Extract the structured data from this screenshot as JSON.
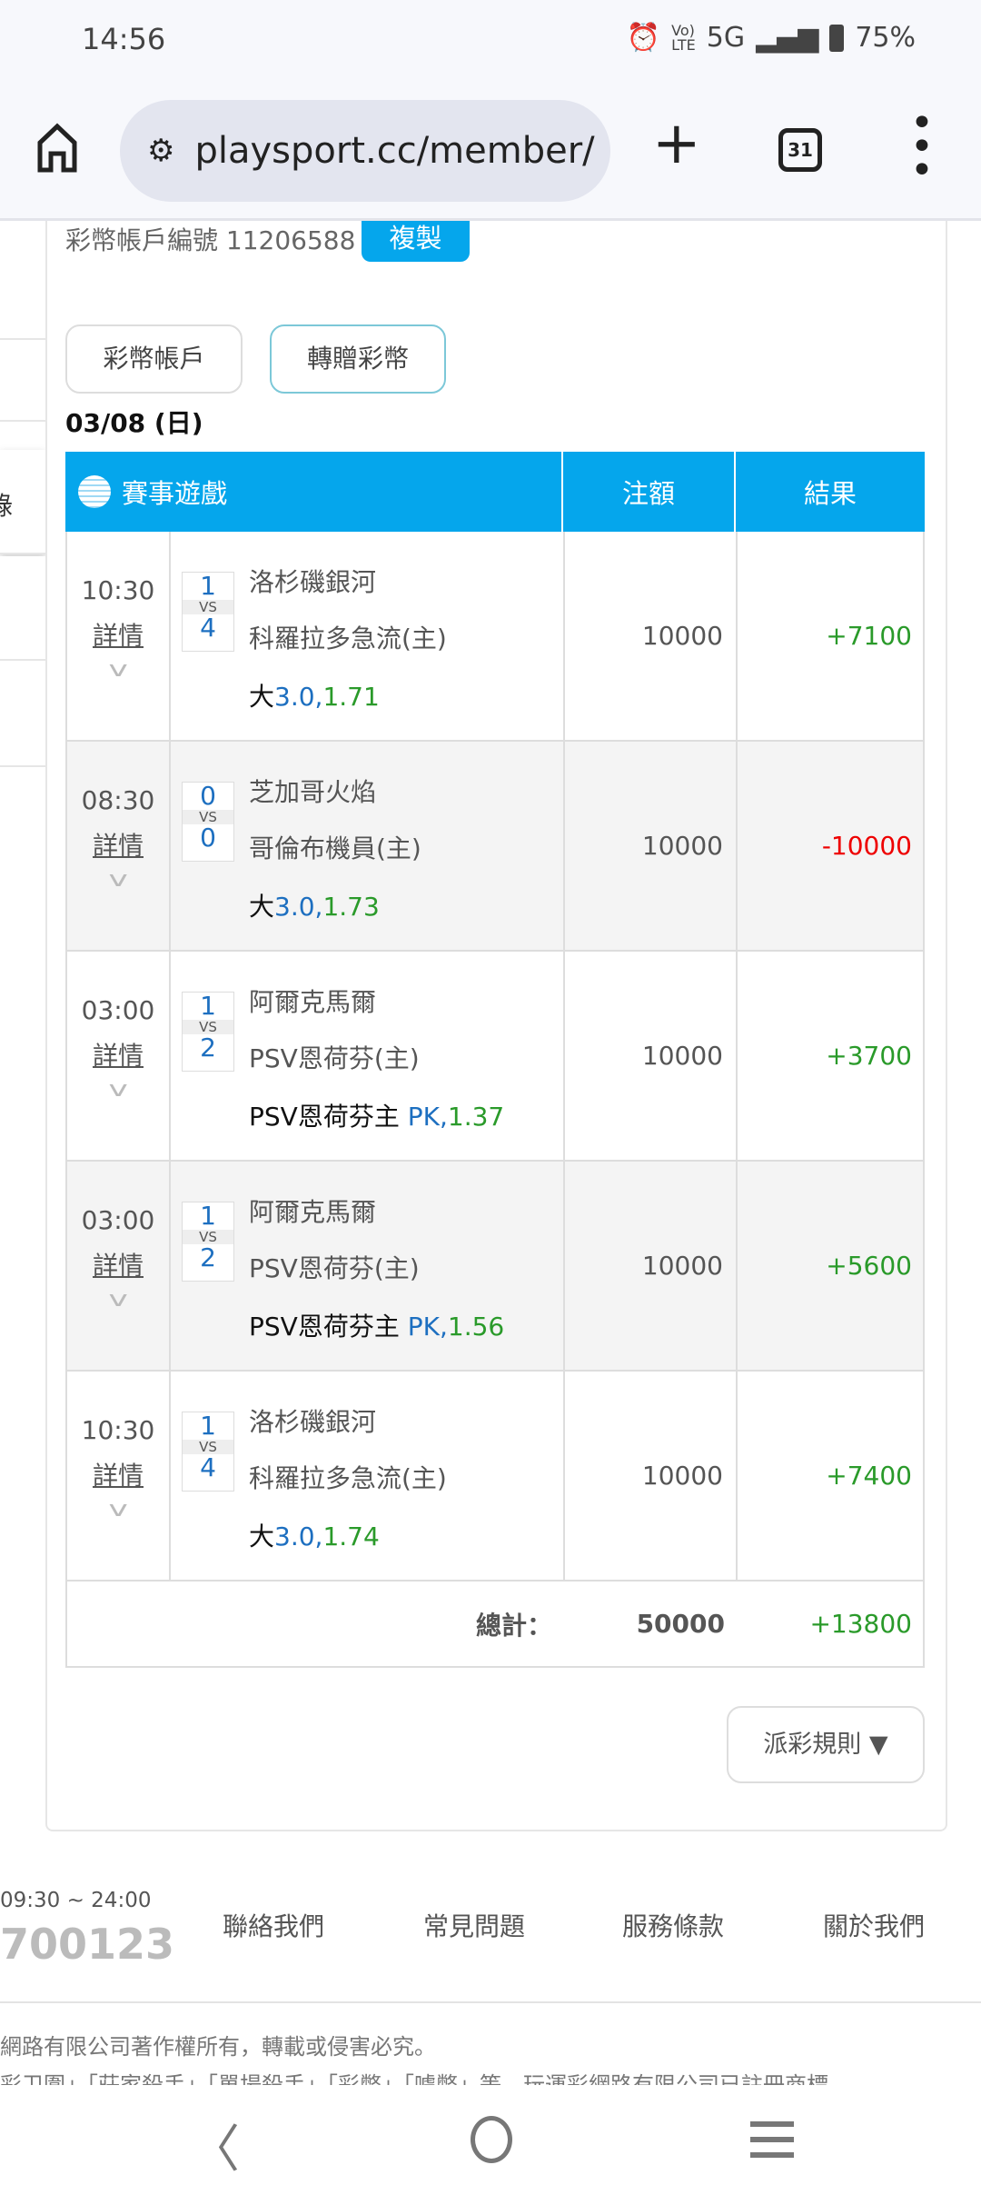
{
  "status_bar": {
    "time": "14:56",
    "icons": [
      "alarm-icon",
      "volte-icon",
      "signal-icon",
      "battery-icon"
    ],
    "network": "5G",
    "battery": "75%"
  },
  "browser": {
    "url": "playsport.cc/member/",
    "tab_count": "31"
  },
  "sidebar": {
    "partial_label": "錄"
  },
  "account": {
    "label": "彩幣帳戶編號 11206588",
    "copy_label": "複製"
  },
  "tabs": [
    {
      "label": "彩幣帳戶"
    },
    {
      "label": "轉贈彩幣"
    }
  ],
  "date": "03/08 (日)",
  "table": {
    "headers": {
      "game": "賽事遊戲",
      "stake": "注額",
      "result": "結果"
    },
    "detail_label": "詳情",
    "vs": "VS",
    "rows": [
      {
        "time": "10:30",
        "score_away": "1",
        "score_home": "4",
        "away": "洛杉磯銀河",
        "home": "科羅拉多急流(主)",
        "pick_prefix": "大",
        "line": "3.0,",
        "odds": "1.71",
        "stake": "10000",
        "result": "+7100",
        "result_type": "win"
      },
      {
        "time": "08:30",
        "score_away": "0",
        "score_home": "0",
        "away": "芝加哥火焰",
        "home": "哥倫布機員(主)",
        "pick_prefix": "大",
        "line": "3.0,",
        "odds": "1.73",
        "stake": "10000",
        "result": "-10000",
        "result_type": "loss"
      },
      {
        "time": "03:00",
        "score_away": "1",
        "score_home": "2",
        "away": "阿爾克馬爾",
        "home": "PSV恩荷芬(主)",
        "pick_prefix": "PSV恩荷芬主 ",
        "line": "PK,",
        "odds": "1.37",
        "stake": "10000",
        "result": "+3700",
        "result_type": "win"
      },
      {
        "time": "03:00",
        "score_away": "1",
        "score_home": "2",
        "away": "阿爾克馬爾",
        "home": "PSV恩荷芬(主)",
        "pick_prefix": "PSV恩荷芬主 ",
        "line": "PK,",
        "odds": "1.56",
        "stake": "10000",
        "result": "+5600",
        "result_type": "win"
      },
      {
        "time": "10:30",
        "score_away": "1",
        "score_home": "4",
        "away": "洛杉磯銀河",
        "home": "科羅拉多急流(主)",
        "pick_prefix": "大",
        "line": "3.0,",
        "odds": "1.74",
        "stake": "10000",
        "result": "+7400",
        "result_type": "win"
      }
    ],
    "total": {
      "label": "總計：",
      "stake": "50000",
      "result": "+13800"
    }
  },
  "rules_button": "派彩規則 ▼",
  "footer": {
    "hours": "09:30 ~ 24:00",
    "phone": "700123",
    "links": [
      "聯絡我們",
      "常見問題",
      "服務條款",
      "關於我們"
    ],
    "copyright": "網路有限公司著作權所有，轉載或侵害必究。",
    "trademark": "彩卫圍」「莊家殺手」「單場殺手」「彩幣」「噱幣」等，玩運彩網路有限公司已註冊商標"
  },
  "colors": {
    "accent": "#05a6ec",
    "win": "#2a9a2a",
    "loss": "#e00000",
    "line": "#1d6fc0"
  }
}
